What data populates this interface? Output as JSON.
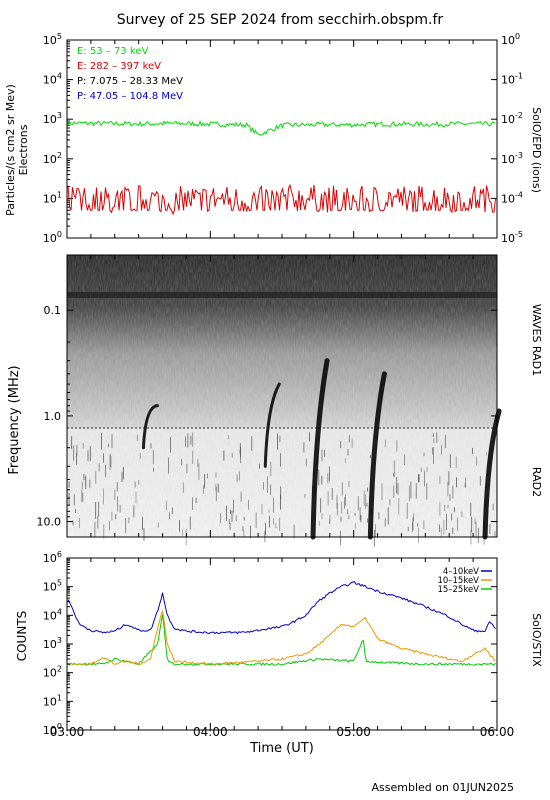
{
  "title": "Survey of 25 SEP 2024 from secchirh.obspm.fr",
  "footer": "Assembled on 01JUN2025",
  "panels": {
    "epd": {
      "ylabel_line1": "Particles/(s cm2 sr Mev)",
      "ylabel_line2": "Electrons",
      "right_label": "SolO/EPD (ions)",
      "left_ticks": [
        {
          "base": "10",
          "exp": "5"
        },
        {
          "base": "10",
          "exp": "4"
        },
        {
          "base": "10",
          "exp": "3"
        },
        {
          "base": "10",
          "exp": "2"
        },
        {
          "base": "10",
          "exp": "1"
        },
        {
          "base": "10",
          "exp": "0"
        }
      ],
      "right_ticks": [
        {
          "base": "10",
          "exp": "0"
        },
        {
          "base": "10",
          "exp": "-1"
        },
        {
          "base": "10",
          "exp": "-2"
        },
        {
          "base": "10",
          "exp": "-3"
        },
        {
          "base": "10",
          "exp": "-4"
        },
        {
          "base": "10",
          "exp": "-5"
        }
      ],
      "legend": [
        {
          "label": "E: 53 – 73 keV",
          "color": "#00dd00"
        },
        {
          "label": "E: 282 – 397 keV",
          "color": "#dd0000"
        },
        {
          "label": "P: 7.075 – 28.33 MeV",
          "color": "#000000"
        },
        {
          "label": "P: 47.05 – 104.8 MeV",
          "color": "#0000cc"
        }
      ]
    },
    "waves": {
      "ylabel": "Frequency (MHz)",
      "ticks": [
        "0.1",
        "1.0",
        "10.0"
      ],
      "label_rad1": "WAVES RAD1",
      "label_rad2": "RAD2"
    },
    "stix": {
      "ylabel": "COUNTS",
      "right_label": "SolO/STIX",
      "ticks": [
        {
          "base": "10",
          "exp": "6"
        },
        {
          "base": "10",
          "exp": "5"
        },
        {
          "base": "10",
          "exp": "4"
        },
        {
          "base": "10",
          "exp": "3"
        },
        {
          "base": "10",
          "exp": "2"
        },
        {
          "base": "10",
          "exp": "1"
        },
        {
          "base": "10",
          "exp": "0"
        }
      ],
      "legend": [
        {
          "label": "4–10keV",
          "color": "#0000cc"
        },
        {
          "label": "10–15keV",
          "color": "#ee9900"
        },
        {
          "label": "15–25keV",
          "color": "#00cc00"
        }
      ]
    }
  },
  "xaxis": {
    "label": "Time (UT)",
    "ticks": [
      "03:00",
      "04:00",
      "05:00",
      "06:00"
    ]
  },
  "chart_data": [
    {
      "type": "line",
      "yscale": "log",
      "ylim_left": [
        1,
        100000
      ],
      "ylim_right": [
        1e-05,
        1
      ],
      "xlim": [
        "03:00",
        "06:00"
      ],
      "series": [
        {
          "name": "E: 53 – 73 keV",
          "color": "#00dd00",
          "x": [
            "03:00",
            "03:15",
            "03:30",
            "03:45",
            "04:00",
            "04:15",
            "04:20",
            "04:30",
            "04:45",
            "05:00",
            "05:15",
            "05:30",
            "05:45",
            "06:00"
          ],
          "y": [
            800,
            780,
            760,
            790,
            750,
            720,
            400,
            700,
            730,
            720,
            760,
            740,
            760,
            760
          ]
        },
        {
          "name": "E: 282 – 397 keV",
          "color": "#dd0000",
          "x": [
            "03:00",
            "03:15",
            "03:30",
            "03:45",
            "04:00",
            "04:15",
            "04:30",
            "04:45",
            "05:00",
            "05:15",
            "05:30",
            "05:45",
            "06:00"
          ],
          "y": [
            10,
            9,
            10,
            9,
            10,
            9,
            10,
            10,
            9,
            10,
            10,
            10,
            10
          ]
        }
      ]
    },
    {
      "type": "heatmap",
      "description_units": "frequency MHz (log, inverted) vs time",
      "ylim": [
        0.03,
        14
      ],
      "bursts": [
        {
          "name": "burst",
          "time": "03:32",
          "fmin": 0.8,
          "fmax": 2.0
        },
        {
          "name": "burst",
          "time": "04:23",
          "fmin": 0.5,
          "fmax": 3.0
        },
        {
          "name": "burst",
          "time": "04:43",
          "fmin": 0.3,
          "fmax": 14
        },
        {
          "name": "burst",
          "time": "05:07",
          "fmin": 0.4,
          "fmax": 14
        },
        {
          "name": "burst",
          "time": "05:55",
          "fmin": 0.9,
          "fmax": 14
        }
      ]
    },
    {
      "type": "line",
      "yscale": "log",
      "ylim": [
        1,
        1000000
      ],
      "xlim": [
        "03:00",
        "06:00"
      ],
      "series": [
        {
          "name": "4–10keV",
          "color": "#0000cc",
          "x": [
            "03:00",
            "03:02",
            "03:05",
            "03:10",
            "03:15",
            "03:20",
            "03:25",
            "03:30",
            "03:35",
            "03:38",
            "03:40",
            "03:42",
            "03:45",
            "03:50",
            "04:00",
            "04:10",
            "04:15",
            "04:20",
            "04:25",
            "04:30",
            "04:35",
            "04:40",
            "04:45",
            "04:50",
            "04:55",
            "05:00",
            "05:05",
            "05:10",
            "05:20",
            "05:30",
            "05:40",
            "05:45",
            "05:50",
            "05:55",
            "05:57",
            "06:00"
          ],
          "y": [
            40000,
            20000,
            5000,
            3000,
            2500,
            2800,
            5000,
            3000,
            3000,
            15000,
            60000,
            10000,
            3500,
            2800,
            2500,
            2500,
            2600,
            3000,
            3500,
            4000,
            6000,
            10000,
            30000,
            60000,
            100000,
            140000,
            100000,
            70000,
            40000,
            20000,
            9000,
            5000,
            3000,
            2800,
            6000,
            3000
          ]
        },
        {
          "name": "10–15keV",
          "color": "#ee9900",
          "x": [
            "03:00",
            "03:10",
            "03:15",
            "03:20",
            "03:25",
            "03:30",
            "03:35",
            "03:38",
            "03:40",
            "03:42",
            "03:45",
            "04:00",
            "04:20",
            "04:30",
            "04:40",
            "04:45",
            "04:50",
            "04:55",
            "05:00",
            "05:05",
            "05:10",
            "05:20",
            "05:30",
            "05:45",
            "05:55",
            "06:00"
          ],
          "y": [
            200,
            200,
            350,
            200,
            250,
            200,
            300,
            4000,
            15000,
            1000,
            250,
            200,
            250,
            300,
            450,
            900,
            2000,
            5000,
            4000,
            8000,
            1500,
            700,
            450,
            250,
            700,
            220
          ]
        },
        {
          "name": "15–25keV",
          "color": "#00cc00",
          "x": [
            "03:00",
            "03:15",
            "03:20",
            "03:30",
            "03:38",
            "03:40",
            "03:42",
            "03:45",
            "04:00",
            "04:30",
            "04:45",
            "04:50",
            "05:00",
            "05:04",
            "05:05",
            "05:15",
            "05:30",
            "06:00"
          ],
          "y": [
            200,
            200,
            300,
            200,
            1000,
            12000,
            250,
            200,
            200,
            200,
            300,
            280,
            250,
            1500,
            250,
            220,
            200,
            200
          ]
        }
      ]
    }
  ]
}
